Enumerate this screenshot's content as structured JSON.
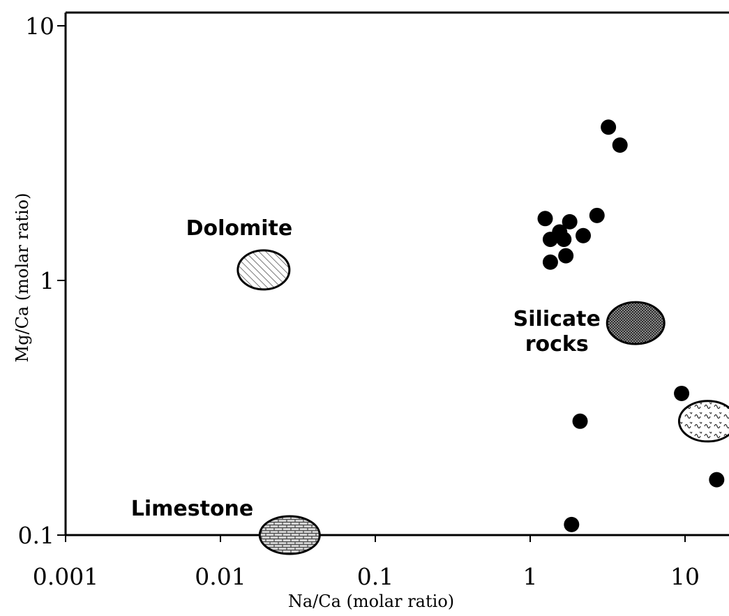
{
  "chart_data": {
    "type": "scatter",
    "xlabel": "Na/Ca (molar ratio)",
    "ylabel": "Mg/Ca (molar ratio)",
    "x_scale": "log",
    "y_scale": "log",
    "xlim": [
      0.001,
      20
    ],
    "ylim": [
      0.1,
      10
    ],
    "x_ticks": [
      {
        "value": 0.001,
        "label": "0.001"
      },
      {
        "value": 0.01,
        "label": "0.01"
      },
      {
        "value": 0.1,
        "label": "0.1"
      },
      {
        "value": 1,
        "label": "1"
      },
      {
        "value": 10,
        "label": "10"
      }
    ],
    "y_ticks": [
      {
        "value": 0.1,
        "label": "0.1"
      },
      {
        "value": 1,
        "label": "1"
      },
      {
        "value": 10,
        "label": "10"
      }
    ],
    "grid": false,
    "points": [
      {
        "x": 3.2,
        "y": 4.0
      },
      {
        "x": 3.8,
        "y": 3.4
      },
      {
        "x": 1.25,
        "y": 1.75
      },
      {
        "x": 1.8,
        "y": 1.7
      },
      {
        "x": 2.7,
        "y": 1.8
      },
      {
        "x": 1.55,
        "y": 1.55
      },
      {
        "x": 1.35,
        "y": 1.45
      },
      {
        "x": 1.65,
        "y": 1.45
      },
      {
        "x": 2.2,
        "y": 1.5
      },
      {
        "x": 1.7,
        "y": 1.25
      },
      {
        "x": 1.35,
        "y": 1.18
      },
      {
        "x": 9.5,
        "y": 0.36
      },
      {
        "x": 2.1,
        "y": 0.28
      },
      {
        "x": 16.0,
        "y": 0.165
      },
      {
        "x": 1.85,
        "y": 0.11
      }
    ],
    "regions": [
      {
        "label": "Dolomite",
        "x": 0.019,
        "y": 1.1,
        "fill": "hatch-diagonal",
        "label_pos": "above"
      },
      {
        "label": "Silicate rocks",
        "x": 4.8,
        "y": 0.68,
        "fill": "stipple-dark",
        "label_pos": "left"
      },
      {
        "label": "Limestone",
        "x": 0.028,
        "y": 0.1,
        "fill": "brick",
        "label_pos": "left"
      },
      {
        "label": "",
        "x": 14.0,
        "y": 0.28,
        "fill": "squiggle",
        "label_pos": "none"
      }
    ],
    "colors": {
      "points": "#000000",
      "axis": "#000000",
      "background": "#ffffff"
    }
  }
}
